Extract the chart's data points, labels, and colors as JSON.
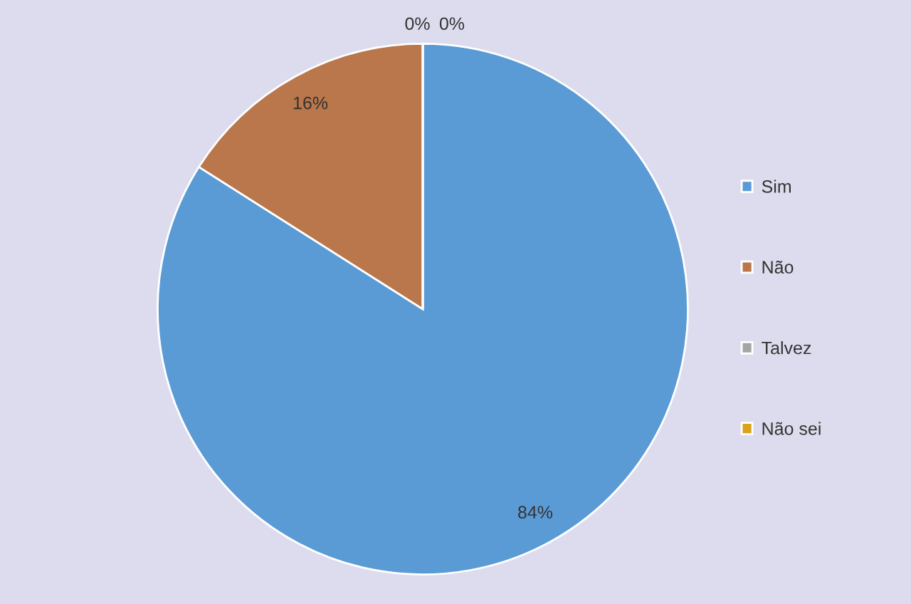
{
  "chart_data": {
    "type": "pie",
    "categories": [
      "Sim",
      "Não",
      "Talvez",
      "Não sei"
    ],
    "values": [
      84,
      16,
      0,
      0
    ],
    "colors": [
      "#5b9bd5",
      "#b9774b",
      "#a5a5a5",
      "#d9a21b"
    ],
    "value_labels": [
      "84%",
      "16%",
      "0%",
      "0%"
    ],
    "legend": "right"
  }
}
